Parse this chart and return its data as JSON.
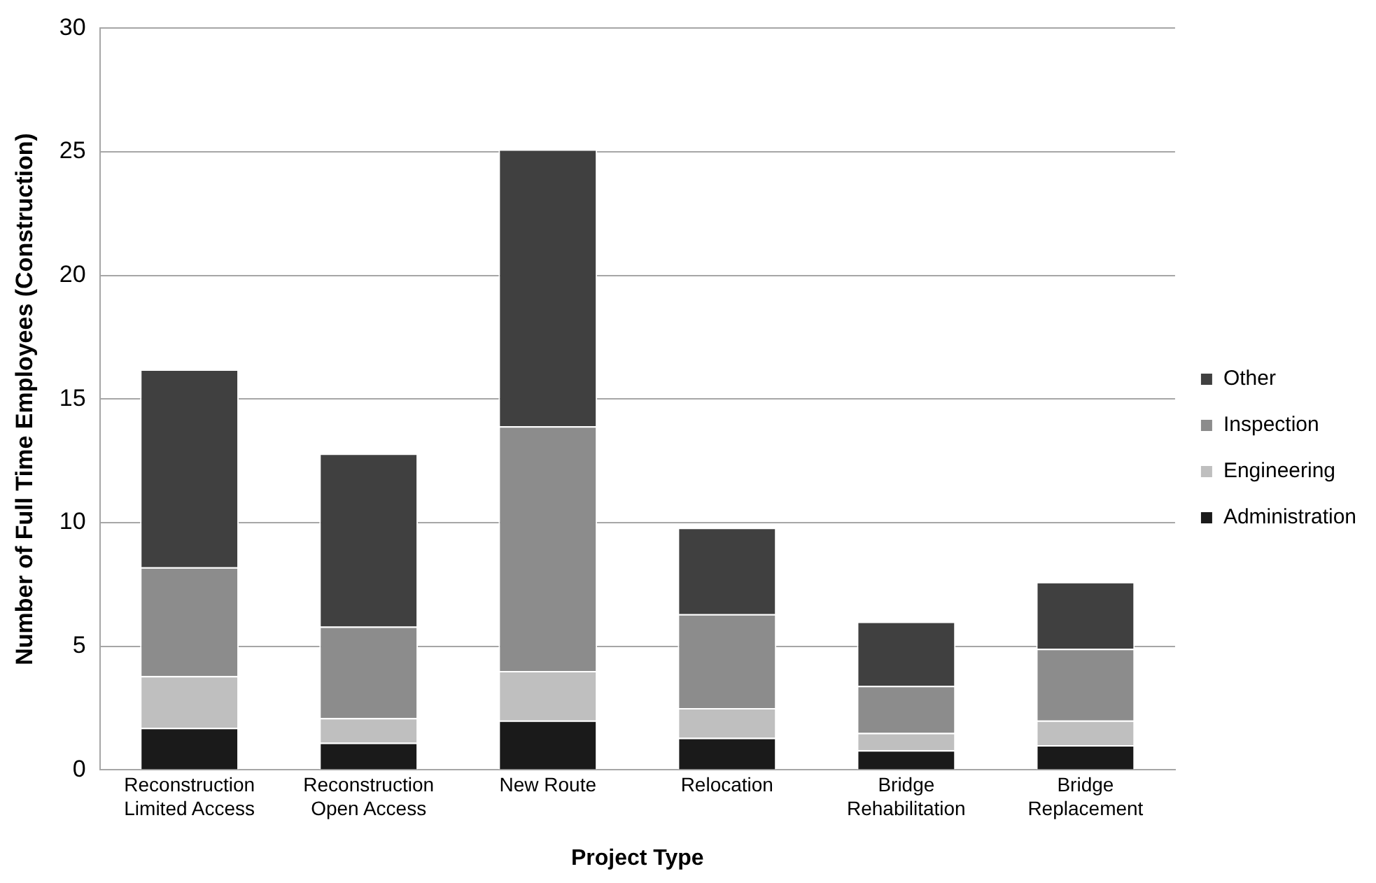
{
  "chart_data": {
    "type": "bar",
    "stacked": true,
    "xlabel": "Project Type",
    "ylabel": "Number of Full Time Employees (Construction)",
    "categories": [
      "Reconstruction\nLimited Access",
      "Reconstruction\nOpen Access",
      "New Route",
      "Relocation",
      "Bridge\nRehabilitation",
      "Bridge\nReplacement"
    ],
    "series": [
      {
        "name": "Administration",
        "color": "#1a1a1a",
        "values": [
          1.7,
          1.1,
          2.0,
          1.3,
          0.8,
          1.0
        ]
      },
      {
        "name": "Engineering",
        "color": "#bfbfbf",
        "values": [
          2.1,
          1.0,
          2.0,
          1.2,
          0.7,
          1.0
        ]
      },
      {
        "name": "Inspection",
        "color": "#8c8c8c",
        "values": [
          4.4,
          3.7,
          9.9,
          3.8,
          1.9,
          2.9
        ]
      },
      {
        "name": "Other",
        "color": "#404040",
        "values": [
          8.0,
          7.0,
          11.2,
          3.5,
          2.6,
          2.7
        ]
      }
    ],
    "ylim": [
      0,
      30
    ],
    "yticks": [
      0,
      5,
      10,
      15,
      20,
      25,
      30
    ],
    "grid": "y",
    "legend": "right"
  }
}
